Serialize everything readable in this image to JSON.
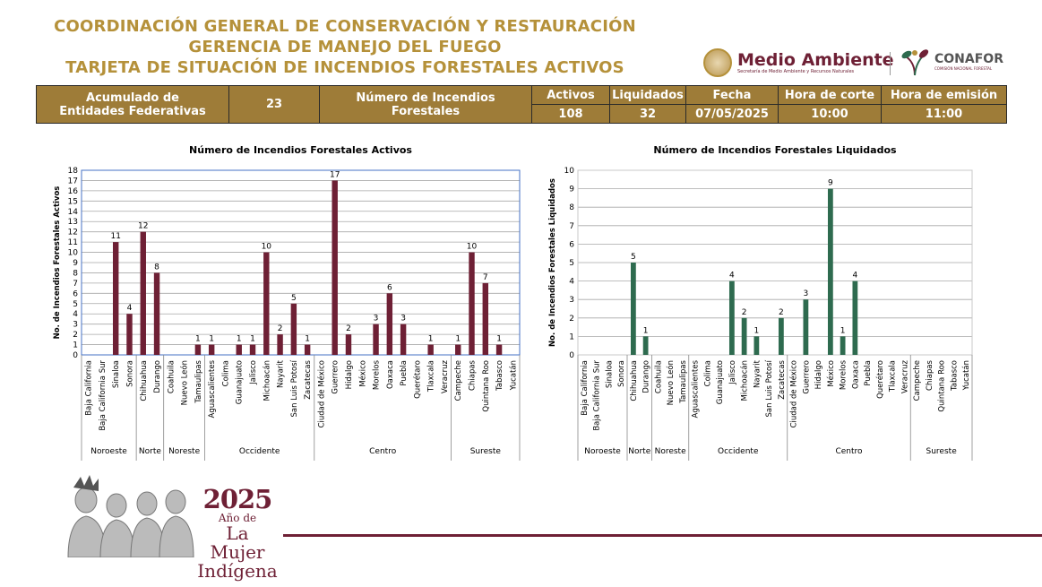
{
  "header": {
    "line1": "COORDINACIÓN GENERAL DE CONSERVACIÓN Y RESTAURACIÓN",
    "line2": "GERENCIA DE MANEJO DEL FUEGO",
    "line3": "TARJETA DE SITUACIÓN DE INCENDIOS FORESTALES ACTIVOS"
  },
  "logos": {
    "medio_ambiente": "Medio Ambiente",
    "medio_ambiente_sub": "Secretaría de Medio Ambiente y Recursos Naturales",
    "conafor": "CONAFOR",
    "conafor_sub": "COMISIÓN NACIONAL FORESTAL"
  },
  "summary": {
    "acumulado_label_1": "Acumulado de",
    "acumulado_label_2": "Entidades Federativas",
    "acumulado_value": "23",
    "numero_label": "Número de Incendios Forestales",
    "activos_label": "Activos",
    "activos_value": "108",
    "liquidados_label": "Liquidados",
    "liquidados_value": "32",
    "fecha_label": "Fecha",
    "fecha_value": "07/05/2025",
    "hora_corte_label": "Hora de corte",
    "hora_corte_value": "10:00",
    "hora_emision_label": "Hora de emisión",
    "hora_emision_value": "11:00"
  },
  "chart_data": [
    {
      "type": "bar",
      "title": "Número de Incendios Forestales Activos",
      "xlabel": "",
      "ylabel": "No. de Incendios Forestales Activos",
      "ylim": [
        0,
        18
      ],
      "color": "#6e2035",
      "categories": [
        "Baja California",
        "Baja California Sur",
        "Sinaloa",
        "Sonora",
        "Chihuahua",
        "Durango",
        "Coahuila",
        "Nuevo León",
        "Tamaulipas",
        "Aguascalientes",
        "Colima",
        "Guanajuato",
        "Jalisco",
        "Michoacán",
        "Nayarit",
        "San Luis Potosí",
        "Zacatecas",
        "Ciudad de México",
        "Guerrero",
        "Hidalgo",
        "México",
        "Morelos",
        "Oaxaca",
        "Puebla",
        "Querétaro",
        "Tlaxcala",
        "Veracruz",
        "Campeche",
        "Chiapas",
        "Quintana Roo",
        "Tabasco",
        "Yucatán"
      ],
      "values": [
        0,
        0,
        11,
        4,
        12,
        8,
        0,
        0,
        1,
        1,
        0,
        1,
        1,
        10,
        2,
        5,
        1,
        0,
        17,
        2,
        0,
        3,
        6,
        3,
        0,
        1,
        0,
        1,
        10,
        7,
        1,
        0
      ],
      "groups": [
        {
          "name": "Noroeste",
          "count": 4
        },
        {
          "name": "Norte",
          "count": 2
        },
        {
          "name": "Noreste",
          "count": 3
        },
        {
          "name": "Occidente",
          "count": 8
        },
        {
          "name": "Centro",
          "count": 10
        },
        {
          "name": "Sureste",
          "count": 5
        }
      ]
    },
    {
      "type": "bar",
      "title": "Número de Incendios Forestales Liquidados",
      "xlabel": "",
      "ylabel": "No. de Incendios Forestales Liquidados",
      "ylim": [
        0,
        10
      ],
      "color": "#2e6b4f",
      "categories": [
        "Baja California",
        "Baja California Sur",
        "Sinaloa",
        "Sonora",
        "Chihuahua",
        "Durango",
        "Coahuila",
        "Nuevo León",
        "Tamaulipas",
        "Aguascalientes",
        "Colima",
        "Guanajuato",
        "Jalisco",
        "Michoacán",
        "Nayarit",
        "San Luis Potosí",
        "Zacatecas",
        "Ciudad de México",
        "Guerrero",
        "Hidalgo",
        "México",
        "Morelos",
        "Oaxaca",
        "Puebla",
        "Querétaro",
        "Tlaxcala",
        "Veracruz",
        "Campeche",
        "Chiapas",
        "Quintana Roo",
        "Tabasco",
        "Yucatán"
      ],
      "values": [
        0,
        0,
        0,
        0,
        5,
        1,
        0,
        0,
        0,
        0,
        0,
        0,
        4,
        2,
        1,
        0,
        2,
        0,
        3,
        0,
        9,
        1,
        4,
        0,
        0,
        0,
        0,
        0,
        0,
        0,
        0,
        0
      ],
      "groups": [
        {
          "name": "Noroeste",
          "count": 4
        },
        {
          "name": "Norte",
          "count": 2
        },
        {
          "name": "Noreste",
          "count": 3
        },
        {
          "name": "Occidente",
          "count": 8
        },
        {
          "name": "Centro",
          "count": 10
        },
        {
          "name": "Sureste",
          "count": 5
        }
      ]
    }
  ],
  "footer": {
    "year": "2025",
    "line1": "Año de",
    "line2": "La Mujer",
    "line3": "Indígena"
  }
}
